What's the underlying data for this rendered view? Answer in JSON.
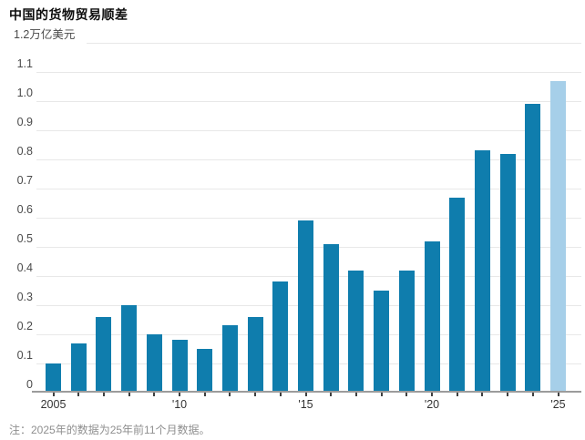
{
  "title": "中国的货物贸易顺差",
  "footnote": "注：2025年的数据为25年前11个月数据。",
  "y_axis": {
    "unit": "万亿美元",
    "tick_labels": [
      "0",
      "0.1",
      "0.2",
      "0.3",
      "0.4",
      "0.5",
      "0.6",
      "0.7",
      "0.8",
      "0.9",
      "1.0",
      "1.1",
      "1.2"
    ]
  },
  "x_axis": {
    "tick_labels": [
      {
        "year": 2005,
        "text": "2005"
      },
      {
        "year": 2010,
        "text": "'10"
      },
      {
        "year": 2015,
        "text": "'15"
      },
      {
        "year": 2020,
        "text": "'20"
      },
      {
        "year": 2025,
        "text": "'25"
      }
    ]
  },
  "colors": {
    "bar": "#0f7dad",
    "bar_highlight": "#a6cfe9",
    "gridline": "#e8e8e8",
    "axis_line": "#9c9c9c",
    "axis_tick": "#404040",
    "title_text": "#0d0d0d",
    "y_label_text": "#4a4a4a",
    "x_label_text": "#333333",
    "footnote_text": "#8f8f8f"
  },
  "chart_data": {
    "type": "bar",
    "title": "中国的货物贸易顺差",
    "ylabel": "万亿美元",
    "xlabel": "",
    "categories": [
      2005,
      2006,
      2007,
      2008,
      2009,
      2010,
      2011,
      2012,
      2013,
      2014,
      2015,
      2016,
      2017,
      2018,
      2019,
      2020,
      2021,
      2022,
      2023,
      2024,
      2025
    ],
    "values": [
      0.1,
      0.17,
      0.26,
      0.3,
      0.2,
      0.18,
      0.15,
      0.23,
      0.26,
      0.38,
      0.59,
      0.51,
      0.42,
      0.35,
      0.42,
      0.52,
      0.67,
      0.83,
      0.82,
      0.99,
      1.07
    ],
    "highlight_category": 2025,
    "ylim": [
      0,
      1.2
    ],
    "y_tick_step": 0.1,
    "grid": "horizontal",
    "legend": "none",
    "note": "2025年的数据为25年前11个月数据"
  }
}
